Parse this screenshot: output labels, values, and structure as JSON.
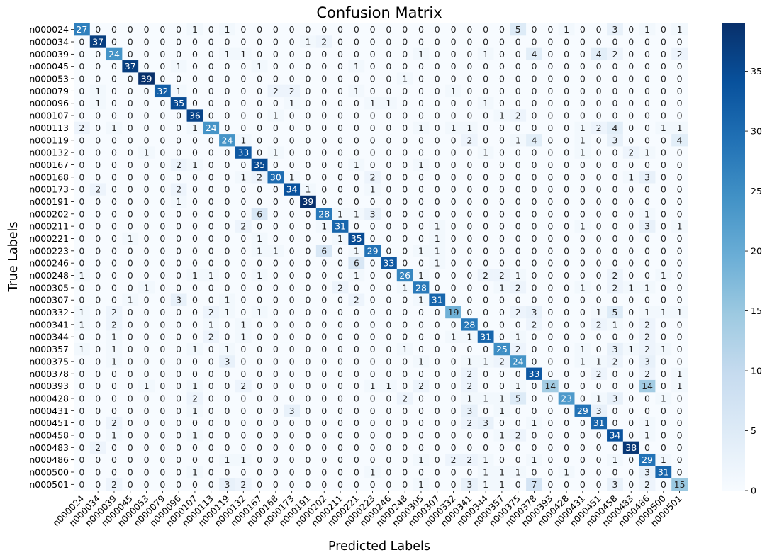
{
  "chart_data": {
    "type": "heatmap",
    "title": "Confusion Matrix",
    "xlabel": "Predicted Labels",
    "ylabel": "True Labels",
    "labels": [
      "n000024",
      "n000034",
      "n000039",
      "n000045",
      "n000053",
      "n000079",
      "n000096",
      "n000107",
      "n000113",
      "n000119",
      "n000132",
      "n000167",
      "n000168",
      "n000173",
      "n000191",
      "n000202",
      "n000211",
      "n000221",
      "n000223",
      "n000246",
      "n000248",
      "n000305",
      "n000307",
      "n000332",
      "n000341",
      "n000344",
      "n000357",
      "n000375",
      "n000378",
      "n000393",
      "n000428",
      "n000431",
      "n000451",
      "n000458",
      "n000483",
      "n000486",
      "n000500",
      "n000501"
    ],
    "matrix": [
      [
        27,
        0,
        0,
        0,
        0,
        0,
        0,
        1,
        0,
        1,
        0,
        0,
        0,
        0,
        0,
        0,
        0,
        0,
        0,
        0,
        0,
        0,
        0,
        0,
        0,
        0,
        0,
        5,
        0,
        0,
        1,
        0,
        0,
        3,
        0,
        1,
        0,
        1
      ],
      [
        0,
        37,
        0,
        0,
        0,
        0,
        0,
        0,
        0,
        0,
        0,
        0,
        0,
        0,
        1,
        2,
        0,
        0,
        0,
        0,
        0,
        0,
        0,
        0,
        0,
        0,
        0,
        0,
        0,
        0,
        0,
        0,
        0,
        0,
        0,
        0,
        0,
        0
      ],
      [
        0,
        0,
        24,
        0,
        0,
        0,
        0,
        0,
        0,
        1,
        1,
        0,
        0,
        0,
        0,
        0,
        0,
        0,
        0,
        0,
        0,
        1,
        0,
        0,
        0,
        1,
        0,
        0,
        4,
        0,
        0,
        0,
        4,
        2,
        0,
        0,
        0,
        2
      ],
      [
        0,
        0,
        0,
        37,
        0,
        0,
        1,
        0,
        0,
        0,
        0,
        1,
        0,
        0,
        0,
        0,
        0,
        1,
        0,
        0,
        0,
        0,
        0,
        0,
        0,
        0,
        0,
        0,
        0,
        0,
        0,
        0,
        0,
        0,
        0,
        0,
        0,
        0
      ],
      [
        0,
        0,
        0,
        0,
        39,
        0,
        0,
        0,
        0,
        0,
        0,
        0,
        0,
        0,
        0,
        0,
        0,
        0,
        0,
        0,
        1,
        0,
        0,
        0,
        0,
        0,
        0,
        0,
        0,
        0,
        0,
        0,
        0,
        0,
        0,
        0,
        0,
        0
      ],
      [
        0,
        1,
        0,
        0,
        0,
        32,
        1,
        0,
        0,
        0,
        0,
        0,
        2,
        2,
        0,
        0,
        0,
        1,
        0,
        0,
        0,
        0,
        0,
        1,
        0,
        0,
        0,
        0,
        0,
        0,
        0,
        0,
        0,
        0,
        0,
        0,
        0,
        0
      ],
      [
        0,
        1,
        0,
        0,
        0,
        0,
        35,
        0,
        0,
        0,
        0,
        0,
        0,
        1,
        0,
        0,
        0,
        0,
        1,
        1,
        0,
        0,
        0,
        0,
        0,
        1,
        0,
        0,
        0,
        0,
        0,
        0,
        0,
        0,
        0,
        0,
        0,
        0
      ],
      [
        0,
        0,
        0,
        0,
        0,
        0,
        0,
        36,
        0,
        0,
        0,
        0,
        1,
        0,
        0,
        0,
        0,
        0,
        0,
        0,
        0,
        0,
        0,
        0,
        0,
        0,
        1,
        2,
        0,
        0,
        0,
        0,
        0,
        0,
        0,
        0,
        0,
        0
      ],
      [
        2,
        0,
        1,
        0,
        0,
        0,
        0,
        1,
        24,
        0,
        0,
        0,
        0,
        0,
        0,
        0,
        0,
        0,
        0,
        0,
        0,
        1,
        0,
        1,
        1,
        0,
        0,
        0,
        0,
        0,
        0,
        1,
        2,
        4,
        0,
        0,
        1,
        1
      ],
      [
        0,
        0,
        0,
        0,
        0,
        0,
        0,
        0,
        0,
        24,
        1,
        0,
        0,
        0,
        0,
        0,
        0,
        0,
        0,
        0,
        0,
        0,
        0,
        0,
        2,
        0,
        0,
        1,
        4,
        0,
        0,
        1,
        0,
        3,
        0,
        0,
        0,
        4
      ],
      [
        0,
        0,
        0,
        0,
        1,
        0,
        0,
        0,
        0,
        0,
        33,
        0,
        1,
        0,
        0,
        0,
        0,
        0,
        0,
        0,
        0,
        0,
        0,
        0,
        0,
        1,
        0,
        0,
        0,
        0,
        0,
        1,
        0,
        0,
        2,
        1,
        0,
        0
      ],
      [
        0,
        0,
        0,
        0,
        0,
        0,
        2,
        1,
        0,
        0,
        0,
        35,
        0,
        0,
        0,
        0,
        0,
        1,
        0,
        0,
        0,
        1,
        0,
        0,
        0,
        0,
        0,
        0,
        0,
        0,
        0,
        0,
        0,
        0,
        0,
        0,
        0,
        0
      ],
      [
        0,
        0,
        0,
        0,
        0,
        0,
        0,
        0,
        0,
        0,
        1,
        2,
        30,
        1,
        0,
        0,
        0,
        0,
        2,
        0,
        0,
        0,
        0,
        0,
        0,
        0,
        0,
        0,
        0,
        0,
        0,
        0,
        0,
        0,
        1,
        3,
        0,
        0
      ],
      [
        0,
        2,
        0,
        0,
        0,
        0,
        2,
        0,
        0,
        0,
        0,
        0,
        0,
        34,
        1,
        0,
        0,
        0,
        1,
        0,
        0,
        0,
        0,
        0,
        0,
        0,
        0,
        0,
        0,
        0,
        0,
        0,
        0,
        0,
        0,
        0,
        0,
        0
      ],
      [
        0,
        0,
        0,
        0,
        0,
        0,
        1,
        0,
        0,
        0,
        0,
        0,
        0,
        0,
        39,
        0,
        0,
        0,
        0,
        0,
        0,
        0,
        0,
        0,
        0,
        0,
        0,
        0,
        0,
        0,
        0,
        0,
        0,
        0,
        0,
        0,
        0,
        0
      ],
      [
        0,
        0,
        0,
        0,
        0,
        0,
        0,
        0,
        0,
        0,
        0,
        6,
        0,
        0,
        0,
        28,
        1,
        1,
        3,
        0,
        0,
        0,
        0,
        0,
        0,
        0,
        0,
        0,
        0,
        0,
        0,
        0,
        0,
        0,
        0,
        1,
        0,
        0
      ],
      [
        0,
        0,
        0,
        0,
        0,
        0,
        0,
        0,
        0,
        0,
        2,
        0,
        0,
        0,
        0,
        1,
        31,
        0,
        0,
        0,
        0,
        0,
        1,
        0,
        0,
        0,
        0,
        0,
        0,
        0,
        0,
        1,
        0,
        0,
        0,
        3,
        0,
        1
      ],
      [
        0,
        0,
        0,
        1,
        0,
        0,
        0,
        0,
        0,
        0,
        0,
        1,
        0,
        0,
        0,
        0,
        1,
        35,
        0,
        0,
        0,
        0,
        1,
        0,
        0,
        0,
        0,
        0,
        0,
        0,
        0,
        0,
        0,
        0,
        0,
        0,
        0,
        0
      ],
      [
        0,
        0,
        0,
        0,
        0,
        0,
        0,
        0,
        0,
        0,
        0,
        1,
        1,
        0,
        0,
        6,
        0,
        1,
        29,
        0,
        0,
        1,
        1,
        0,
        0,
        0,
        0,
        0,
        0,
        0,
        0,
        0,
        0,
        0,
        0,
        0,
        0,
        0
      ],
      [
        0,
        0,
        0,
        0,
        0,
        0,
        0,
        0,
        0,
        0,
        0,
        0,
        0,
        0,
        0,
        0,
        0,
        6,
        0,
        33,
        0,
        0,
        1,
        0,
        0,
        0,
        0,
        0,
        0,
        0,
        0,
        0,
        0,
        0,
        0,
        0,
        0,
        0
      ],
      [
        1,
        0,
        0,
        0,
        0,
        0,
        0,
        1,
        1,
        0,
        0,
        1,
        0,
        0,
        0,
        0,
        0,
        1,
        0,
        0,
        26,
        1,
        0,
        0,
        0,
        2,
        2,
        1,
        0,
        0,
        0,
        0,
        0,
        2,
        0,
        0,
        1,
        0
      ],
      [
        0,
        0,
        0,
        0,
        1,
        0,
        0,
        0,
        0,
        0,
        0,
        0,
        0,
        0,
        0,
        0,
        2,
        0,
        0,
        0,
        1,
        28,
        0,
        0,
        0,
        0,
        1,
        2,
        0,
        0,
        0,
        1,
        0,
        2,
        1,
        1,
        0,
        0
      ],
      [
        0,
        0,
        0,
        1,
        0,
        0,
        3,
        0,
        0,
        1,
        0,
        0,
        0,
        0,
        0,
        0,
        0,
        2,
        0,
        0,
        0,
        1,
        31,
        0,
        0,
        0,
        0,
        0,
        0,
        0,
        0,
        0,
        0,
        0,
        0,
        0,
        0,
        0
      ],
      [
        1,
        0,
        2,
        0,
        0,
        0,
        0,
        0,
        2,
        1,
        0,
        1,
        0,
        0,
        0,
        0,
        0,
        0,
        0,
        0,
        0,
        0,
        0,
        19,
        0,
        0,
        0,
        2,
        3,
        0,
        0,
        0,
        1,
        5,
        0,
        1,
        1,
        1
      ],
      [
        1,
        0,
        2,
        0,
        0,
        0,
        0,
        0,
        1,
        0,
        1,
        0,
        0,
        0,
        0,
        0,
        0,
        0,
        0,
        0,
        0,
        0,
        0,
        0,
        28,
        0,
        0,
        0,
        2,
        0,
        0,
        0,
        2,
        1,
        0,
        2,
        0,
        0
      ],
      [
        0,
        0,
        1,
        0,
        0,
        0,
        0,
        0,
        2,
        0,
        1,
        0,
        0,
        0,
        0,
        0,
        0,
        0,
        0,
        0,
        0,
        0,
        0,
        1,
        1,
        31,
        0,
        1,
        0,
        0,
        0,
        0,
        0,
        0,
        0,
        2,
        0,
        0
      ],
      [
        1,
        0,
        1,
        0,
        0,
        0,
        0,
        1,
        0,
        1,
        0,
        0,
        0,
        0,
        0,
        0,
        0,
        0,
        0,
        0,
        1,
        0,
        0,
        0,
        0,
        0,
        25,
        2,
        0,
        0,
        0,
        1,
        0,
        3,
        1,
        2,
        1,
        0
      ],
      [
        0,
        0,
        1,
        0,
        0,
        0,
        0,
        0,
        0,
        3,
        0,
        0,
        0,
        0,
        0,
        0,
        0,
        0,
        0,
        0,
        0,
        1,
        0,
        0,
        1,
        1,
        2,
        24,
        0,
        0,
        0,
        1,
        1,
        2,
        0,
        3,
        0,
        0
      ],
      [
        0,
        0,
        0,
        0,
        0,
        0,
        0,
        0,
        0,
        0,
        0,
        0,
        0,
        0,
        0,
        0,
        0,
        0,
        0,
        0,
        0,
        0,
        0,
        0,
        2,
        0,
        0,
        0,
        33,
        0,
        0,
        0,
        2,
        0,
        0,
        2,
        0,
        1
      ],
      [
        0,
        0,
        0,
        0,
        1,
        0,
        0,
        1,
        0,
        0,
        2,
        0,
        0,
        0,
        0,
        0,
        0,
        0,
        1,
        1,
        0,
        2,
        0,
        0,
        2,
        0,
        0,
        1,
        0,
        14,
        0,
        0,
        0,
        0,
        0,
        14,
        0,
        1
      ],
      [
        0,
        0,
        0,
        0,
        0,
        0,
        0,
        2,
        0,
        0,
        0,
        0,
        0,
        0,
        0,
        0,
        0,
        0,
        0,
        0,
        2,
        0,
        0,
        0,
        1,
        1,
        1,
        5,
        0,
        0,
        23,
        0,
        1,
        3,
        0,
        0,
        1,
        0
      ],
      [
        0,
        0,
        0,
        0,
        0,
        0,
        0,
        1,
        0,
        0,
        0,
        0,
        0,
        3,
        0,
        0,
        0,
        0,
        0,
        0,
        0,
        0,
        0,
        0,
        3,
        0,
        1,
        0,
        0,
        0,
        0,
        29,
        3,
        0,
        0,
        0,
        0,
        0
      ],
      [
        0,
        0,
        2,
        0,
        0,
        0,
        0,
        0,
        0,
        0,
        0,
        0,
        0,
        0,
        0,
        0,
        0,
        0,
        0,
        0,
        0,
        0,
        0,
        0,
        2,
        3,
        0,
        0,
        1,
        0,
        0,
        0,
        31,
        0,
        0,
        1,
        0,
        0
      ],
      [
        0,
        0,
        1,
        0,
        0,
        0,
        0,
        1,
        0,
        0,
        0,
        0,
        0,
        0,
        0,
        0,
        0,
        0,
        0,
        0,
        0,
        0,
        0,
        0,
        0,
        0,
        1,
        2,
        0,
        0,
        0,
        0,
        0,
        34,
        0,
        1,
        0,
        0
      ],
      [
        0,
        2,
        0,
        0,
        0,
        0,
        0,
        0,
        0,
        0,
        0,
        0,
        0,
        0,
        0,
        0,
        0,
        0,
        0,
        0,
        0,
        0,
        0,
        0,
        0,
        0,
        0,
        0,
        0,
        0,
        0,
        0,
        0,
        0,
        38,
        0,
        0,
        0
      ],
      [
        0,
        0,
        0,
        0,
        0,
        0,
        0,
        0,
        0,
        1,
        1,
        0,
        0,
        0,
        0,
        0,
        0,
        0,
        0,
        0,
        0,
        1,
        0,
        2,
        2,
        1,
        0,
        0,
        1,
        0,
        0,
        0,
        0,
        1,
        0,
        29,
        1,
        0
      ],
      [
        0,
        0,
        0,
        0,
        0,
        0,
        0,
        1,
        0,
        0,
        0,
        0,
        0,
        0,
        0,
        0,
        0,
        0,
        1,
        0,
        0,
        0,
        0,
        0,
        0,
        1,
        1,
        1,
        0,
        0,
        1,
        0,
        0,
        0,
        0,
        3,
        31,
        0
      ],
      [
        0,
        0,
        2,
        0,
        0,
        0,
        0,
        0,
        0,
        3,
        2,
        0,
        0,
        0,
        0,
        0,
        0,
        0,
        0,
        0,
        0,
        1,
        0,
        0,
        3,
        1,
        1,
        0,
        7,
        0,
        0,
        0,
        0,
        3,
        0,
        2,
        0,
        15
      ]
    ],
    "colorbar": {
      "min": 0,
      "max": 39,
      "ticks": [
        0,
        5,
        10,
        15,
        20,
        25,
        30,
        35
      ]
    },
    "colormap": "Blues",
    "colors": {
      "low": "#f7fbff",
      "high": "#08306b"
    }
  }
}
